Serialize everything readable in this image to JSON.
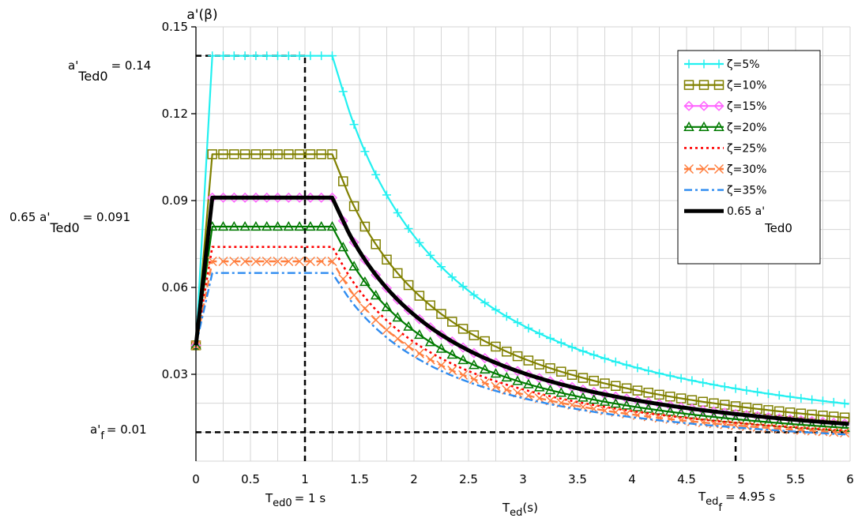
{
  "chart_data": {
    "type": "line",
    "x_label": {
      "main": "T",
      "sub": "ed",
      "unit": "(s)"
    },
    "y_label": "a'(β)",
    "xlim": [
      0,
      6
    ],
    "ylim": [
      0,
      0.15
    ],
    "x_ticks": [
      "0",
      "0.5",
      "1",
      "1.5",
      "2",
      "2.5",
      "3",
      "3.5",
      "4",
      "4.5",
      "5",
      "5.5",
      "6"
    ],
    "y_ticks": [
      "0.03",
      "0.06",
      "0.09",
      "0.12",
      "0.15"
    ],
    "grid": true,
    "legend_position": "top-right",
    "curve_shape": {
      "x_start": 0,
      "y_start": 0.04,
      "ramp_end_x": 0.15,
      "plateau_end_x": 1.25,
      "descent_x": 1.4,
      "decay_exponent": 1.25
    },
    "series": [
      {
        "name": "ζ=5%",
        "peak": 0.14,
        "color": "#22f0f0",
        "marker": "plus",
        "style": "solid",
        "width": 2.2
      },
      {
        "name": "ζ=10%",
        "peak": 0.106,
        "color": "#808000",
        "marker": "square",
        "style": "solid",
        "width": 2.2
      },
      {
        "name": "ζ=15%",
        "peak": 0.091,
        "color": "#ff66ff",
        "marker": "diamond",
        "style": "solid",
        "width": 2.2
      },
      {
        "name": "ζ=20%",
        "peak": 0.081,
        "color": "#007a00",
        "marker": "triangle",
        "style": "solid",
        "width": 2.2
      },
      {
        "name": "ζ=25%",
        "peak": 0.074,
        "color": "#ff0000",
        "marker": "none",
        "style": "dot",
        "width": 2.6
      },
      {
        "name": "ζ=30%",
        "peak": 0.069,
        "color": "#ff7f3f",
        "marker": "x",
        "style": "dash",
        "width": 2.4
      },
      {
        "name": "ζ=35%",
        "peak": 0.065,
        "color": "#2f8cf0",
        "marker": "none",
        "style": "dashdot",
        "width": 2.4
      },
      {
        "name": "0.65 a'",
        "name_sub": "Ted0",
        "peak": 0.091,
        "color": "#000000",
        "marker": "none",
        "style": "solid",
        "width": 5
      }
    ],
    "reference_lines": [
      {
        "axis": "y",
        "value": 0.14,
        "x_to": 1
      },
      {
        "axis": "y",
        "value": 0.091,
        "x_to": 0
      },
      {
        "axis": "y",
        "value": 0.01,
        "x_to": 6
      },
      {
        "axis": "x",
        "value": 1,
        "y_to": 0.14
      },
      {
        "axis": "x",
        "value": 4.95,
        "y_to": 0.01
      }
    ],
    "annotations": {
      "a_ted0": {
        "main": "a'",
        "sub": "Ted0",
        "value": "= 0.14"
      },
      "a_065": {
        "main": "0.65 a'",
        "sub": "Ted0",
        "value": "= 0.091"
      },
      "a_f": {
        "main": "a'",
        "sub": "f",
        "value": "= 0.01"
      },
      "t_ed0": {
        "main": "T",
        "sub": "ed0",
        "value": "= 1 s"
      },
      "t_edf": {
        "main": "T",
        "sub": "ed",
        "subsub": "f",
        "value": "= 4.95 s"
      }
    }
  }
}
